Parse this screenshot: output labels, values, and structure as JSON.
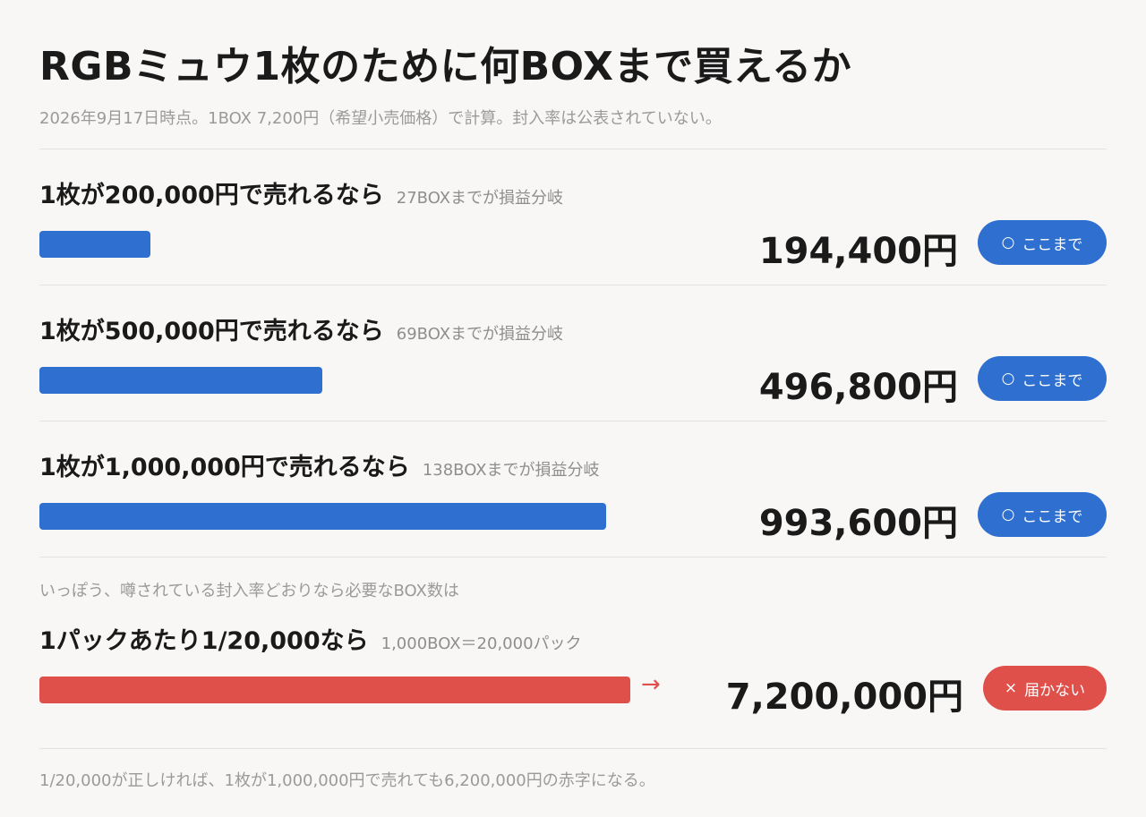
{
  "title": "RGBミュウ1枚のために何BOXまで買えるか",
  "subtitle": "2026年9月17日時点。1BOX 7,200円（希望小売価格）で計算。封入率は公表されていない。",
  "section_note": "いっぽう、噂されている封入率どおりなら必要なBOX数は",
  "footer": "1/20,000が正しければ、1枚が1,000,000円で売れても6,200,000円の赤字になる。",
  "colors": {
    "blue": "#2f6fd0",
    "red": "#e0504a"
  },
  "chart_data": {
    "type": "bar",
    "orientation": "horizontal",
    "unit": "BOX",
    "xlim": [
      0,
      144
    ],
    "categories": [
      "1枚が200,000円で売れるなら",
      "1枚が500,000円で売れるなら",
      "1枚が1,000,000円で売れるなら",
      "1パックあたり1/20,000なら"
    ],
    "rows": [
      {
        "label": "1枚が200,000円で売れるなら",
        "note": "27BOXまでが損益分岐",
        "boxes": 27,
        "amount": "194,400円",
        "badge_mark": "○",
        "badge_text": "ここまで",
        "color": "blue",
        "overflow": false
      },
      {
        "label": "1枚が500,000円で売れるなら",
        "note": "69BOXまでが損益分岐",
        "boxes": 69,
        "amount": "496,800円",
        "badge_mark": "○",
        "badge_text": "ここまで",
        "color": "blue",
        "overflow": false
      },
      {
        "label": "1枚が1,000,000円で売れるなら",
        "note": "138BOXまでが損益分岐",
        "boxes": 138,
        "amount": "993,600円",
        "badge_mark": "○",
        "badge_text": "ここまで",
        "color": "blue",
        "overflow": false
      },
      {
        "label": "1パックあたり1/20,000なら",
        "note": "1,000BOX＝20,000パック",
        "boxes": 1000,
        "amount": "7,200,000円",
        "badge_mark": "×",
        "badge_text": "届かない",
        "color": "red",
        "overflow": true,
        "overflow_mark": "→"
      }
    ]
  }
}
